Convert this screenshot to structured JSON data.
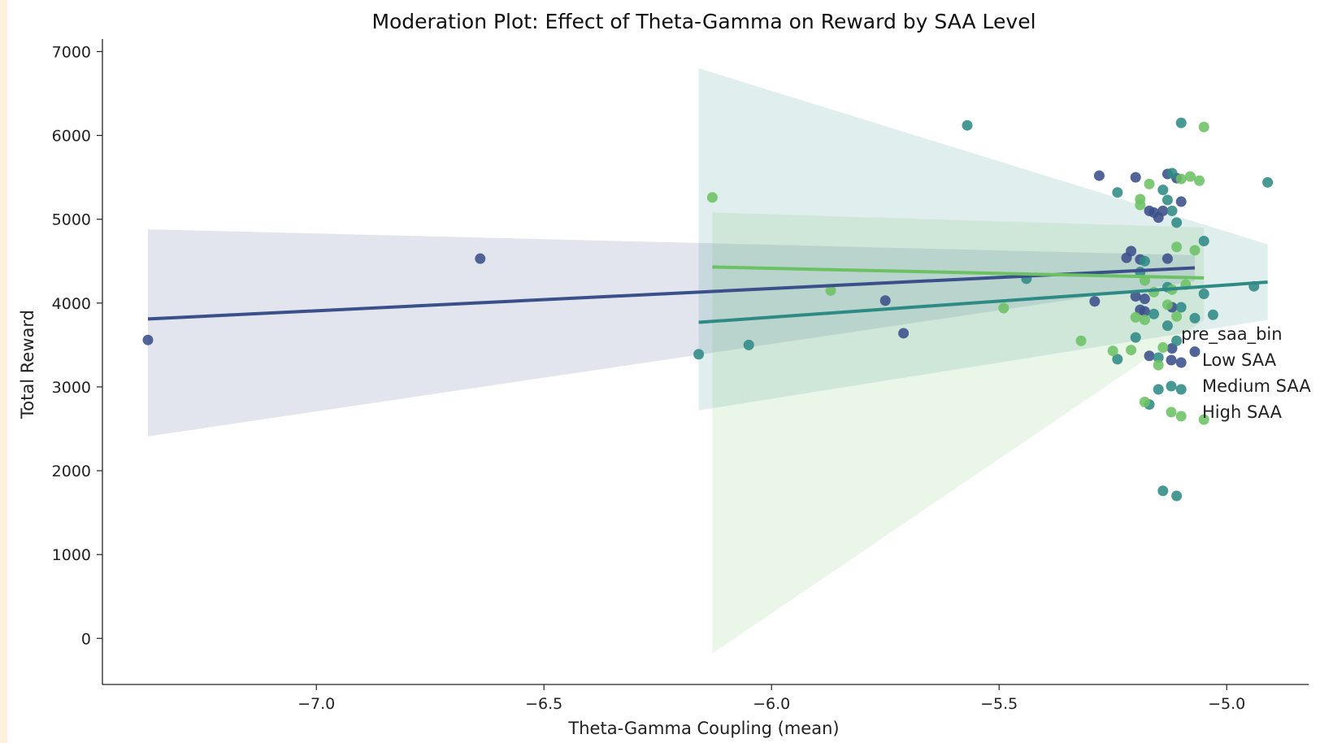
{
  "chart_data": {
    "type": "scatter",
    "title": "Moderation Plot: Effect of Theta-Gamma on Reward by SAA Level",
    "xlabel": "Theta-Gamma Coupling (mean)",
    "ylabel": "Total Reward",
    "xlim": [
      -7.47,
      -4.82
    ],
    "ylim": [
      -550,
      7150
    ],
    "x_ticks": [
      -7.0,
      -6.5,
      -6.0,
      -5.5,
      -5.0
    ],
    "x_tick_labels": [
      "−7.0",
      "−6.5",
      "−6.0",
      "−5.5",
      "−5.0"
    ],
    "y_ticks": [
      0,
      1000,
      2000,
      3000,
      4000,
      5000,
      6000,
      7000
    ],
    "y_tick_labels": [
      "0",
      "1000",
      "2000",
      "3000",
      "4000",
      "5000",
      "6000",
      "7000"
    ],
    "grid": false,
    "legend": {
      "title": "pre_saa_bin",
      "placement": "center-right"
    },
    "series": [
      {
        "name": "Low SAA",
        "color": "#3b4f8a",
        "points": [
          [
            -7.37,
            3560
          ],
          [
            -6.64,
            4530
          ],
          [
            -5.75,
            4030
          ],
          [
            -5.71,
            3640
          ],
          [
            -5.29,
            4020
          ],
          [
            -5.28,
            5520
          ],
          [
            -5.22,
            4540
          ],
          [
            -5.21,
            4620
          ],
          [
            -5.2,
            5500
          ],
          [
            -5.2,
            4080
          ],
          [
            -5.19,
            4520
          ],
          [
            -5.19,
            3920
          ],
          [
            -5.18,
            4050
          ],
          [
            -5.18,
            3900
          ],
          [
            -5.17,
            5100
          ],
          [
            -5.17,
            3370
          ],
          [
            -5.16,
            5080
          ],
          [
            -5.15,
            5020
          ],
          [
            -5.14,
            5100
          ],
          [
            -5.13,
            5540
          ],
          [
            -5.13,
            4530
          ],
          [
            -5.12,
            3460
          ],
          [
            -5.12,
            3950
          ],
          [
            -5.11,
            5490
          ],
          [
            -5.1,
            5210
          ],
          [
            -5.1,
            3290
          ],
          [
            -5.07,
            3420
          ]
        ],
        "fit_line": [
          [
            -7.37,
            3810
          ],
          [
            -5.07,
            4420
          ]
        ],
        "ci_band": [
          [
            -7.37,
            2410,
            4880
          ],
          [
            -5.07,
            4260,
            4570
          ]
        ]
      },
      {
        "name": "Medium SAA",
        "color": "#2f8a85",
        "points": [
          [
            -6.16,
            3390
          ],
          [
            -6.05,
            3500
          ],
          [
            -5.57,
            6120
          ],
          [
            -5.44,
            4290
          ],
          [
            -5.24,
            5320
          ],
          [
            -5.24,
            3330
          ],
          [
            -5.2,
            3590
          ],
          [
            -5.19,
            4370
          ],
          [
            -5.18,
            4500
          ],
          [
            -5.17,
            2790
          ],
          [
            -5.16,
            3870
          ],
          [
            -5.15,
            2970
          ],
          [
            -5.15,
            3350
          ],
          [
            -5.14,
            5350
          ],
          [
            -5.14,
            1760
          ],
          [
            -5.13,
            3730
          ],
          [
            -5.13,
            4190
          ],
          [
            -5.13,
            5230
          ],
          [
            -5.12,
            5100
          ],
          [
            -5.12,
            5550
          ],
          [
            -5.11,
            1700
          ],
          [
            -5.11,
            3550
          ],
          [
            -5.11,
            4960
          ],
          [
            -5.1,
            6150
          ],
          [
            -5.1,
            2970
          ],
          [
            -5.1,
            3950
          ],
          [
            -5.07,
            3820
          ],
          [
            -5.05,
            4740
          ],
          [
            -5.05,
            4110
          ],
          [
            -5.03,
            3860
          ],
          [
            -4.94,
            4200
          ],
          [
            -4.91,
            5440
          ]
        ],
        "fit_line": [
          [
            -6.16,
            3770
          ],
          [
            -4.91,
            4250
          ]
        ],
        "ci_band": [
          [
            -6.16,
            2720,
            6800
          ],
          [
            -4.91,
            3800,
            4700
          ]
        ]
      },
      {
        "name": "High SAA",
        "color": "#6cc164",
        "points": [
          [
            -6.13,
            5260
          ],
          [
            -5.87,
            4150
          ],
          [
            -5.49,
            3940
          ],
          [
            -5.32,
            3550
          ],
          [
            -5.25,
            3430
          ],
          [
            -5.21,
            3440
          ],
          [
            -5.2,
            3830
          ],
          [
            -5.19,
            5240
          ],
          [
            -5.19,
            5170
          ],
          [
            -5.18,
            3800
          ],
          [
            -5.18,
            2820
          ],
          [
            -5.18,
            4270
          ],
          [
            -5.17,
            5420
          ],
          [
            -5.16,
            4130
          ],
          [
            -5.15,
            3260
          ],
          [
            -5.14,
            3470
          ],
          [
            -5.13,
            3980
          ],
          [
            -5.12,
            4160
          ],
          [
            -5.11,
            4670
          ],
          [
            -5.11,
            3840
          ],
          [
            -5.1,
            5480
          ],
          [
            -5.1,
            2650
          ],
          [
            -5.09,
            4220
          ],
          [
            -5.08,
            5510
          ],
          [
            -5.07,
            4630
          ],
          [
            -5.06,
            5460
          ],
          [
            -5.05,
            6100
          ],
          [
            -5.05,
            2610
          ]
        ],
        "fit_line": [
          [
            -6.13,
            4430
          ],
          [
            -5.05,
            4300
          ]
        ],
        "ci_band": [
          [
            -6.13,
            -180,
            5080
          ],
          [
            -5.05,
            3800,
            4900
          ]
        ]
      }
    ]
  }
}
